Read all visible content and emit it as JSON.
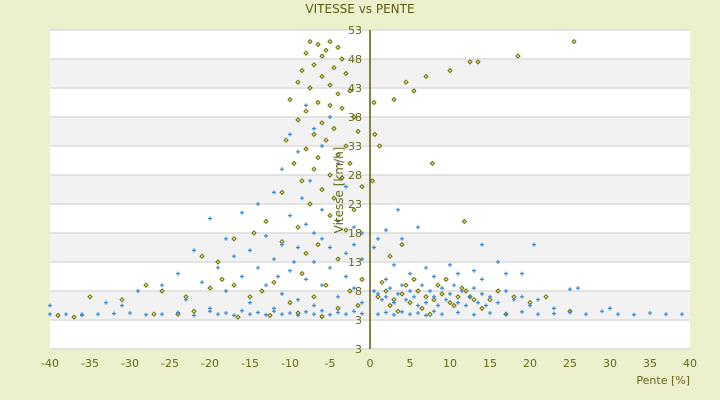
{
  "chart_data": {
    "type": "scatter",
    "title": "VITESSE vs PENTE",
    "xlabel": "Pente [%]",
    "ylabel": "Vitesse [km/h]",
    "xlim": [
      -40,
      40
    ],
    "ylim": [
      -2,
      53
    ],
    "x_ticks": [
      "-40",
      "-35",
      "-30",
      "-25",
      "-20",
      "-15",
      "-10",
      "-5",
      "0",
      "5",
      "10",
      "15",
      "20",
      "25",
      "30",
      "35",
      "40"
    ],
    "y_ticks": [
      "53",
      "48",
      "43",
      "38",
      "33",
      "28",
      "23",
      "18",
      "13",
      "8",
      "3",
      "3"
    ],
    "grid": true,
    "banded_background": true,
    "colors": {
      "background": "#ecf0cd",
      "band": "#f2f2f2",
      "grid": "#dcdcdc",
      "axis": "#5c5c00",
      "text": "#66661a",
      "series_blue": "#3a8ad8",
      "series_olive": "#6b6b00"
    },
    "series": [
      {
        "marker": "diamond",
        "color": "#6b6b00",
        "points": [
          [
            -7.5,
            51
          ],
          [
            -6.5,
            50.5
          ],
          [
            -5,
            51
          ],
          [
            -4,
            50
          ],
          [
            -8,
            49
          ],
          [
            -6,
            48.5
          ],
          [
            -5.5,
            49.5
          ],
          [
            -3.5,
            48
          ],
          [
            -7,
            47
          ],
          [
            -4.5,
            46.5
          ],
          [
            -8.5,
            46
          ],
          [
            -6,
            45
          ],
          [
            -3,
            45.5
          ],
          [
            -9,
            44
          ],
          [
            -5,
            43.5
          ],
          [
            -7.5,
            43
          ],
          [
            -4,
            42
          ],
          [
            -2.5,
            42.5
          ],
          [
            -10,
            41
          ],
          [
            -6.5,
            40.5
          ],
          [
            -5,
            40
          ],
          [
            -8,
            39
          ],
          [
            -3.5,
            39.5
          ],
          [
            -2,
            38
          ],
          [
            -9,
            37.5
          ],
          [
            -6,
            37
          ],
          [
            -4.5,
            36
          ],
          [
            -7,
            35
          ],
          [
            -1.5,
            35.5
          ],
          [
            -10.5,
            34
          ],
          [
            -5.5,
            34
          ],
          [
            -3,
            33
          ],
          [
            -8,
            32.5
          ],
          [
            -6.5,
            31
          ],
          [
            -4,
            31.5
          ],
          [
            -9.5,
            30
          ],
          [
            -2.5,
            30
          ],
          [
            -7,
            29
          ],
          [
            -5,
            28
          ],
          [
            -3.5,
            27.5
          ],
          [
            -8.5,
            27
          ],
          [
            -1,
            26
          ],
          [
            -6,
            25.5
          ],
          [
            -4.5,
            24
          ],
          [
            -11,
            25
          ],
          [
            -7.5,
            23
          ],
          [
            -2,
            22
          ],
          [
            -13,
            20
          ],
          [
            -5,
            21
          ],
          [
            -9,
            19
          ],
          [
            -14.5,
            18
          ],
          [
            -3,
            18.5
          ],
          [
            -17,
            17
          ],
          [
            -11,
            16.5
          ],
          [
            -6.5,
            16
          ],
          [
            -21,
            14
          ],
          [
            -8,
            14.5
          ],
          [
            -4,
            13.5
          ],
          [
            -19,
            13
          ],
          [
            -35,
            7
          ],
          [
            -31,
            6.5
          ],
          [
            -28,
            9
          ],
          [
            -26,
            8
          ],
          [
            -23,
            7
          ],
          [
            -22,
            4.5
          ],
          [
            -20,
            8.5
          ],
          [
            -18.5,
            10
          ],
          [
            -17,
            9
          ],
          [
            -15,
            7
          ],
          [
            -13.5,
            8
          ],
          [
            -12,
            9.5
          ],
          [
            -10,
            6
          ],
          [
            -8.5,
            11
          ],
          [
            -7,
            7
          ],
          [
            -5.5,
            9
          ],
          [
            -4,
            5
          ],
          [
            -2.5,
            8
          ],
          [
            -1,
            10
          ],
          [
            -27,
            4
          ],
          [
            -24,
            4
          ],
          [
            -16.5,
            3.5
          ],
          [
            -12.5,
            3.8
          ],
          [
            -9,
            4.2
          ],
          [
            -6,
            3.6
          ],
          [
            -37,
            3.5
          ],
          [
            -39,
            3.8
          ],
          [
            -1.5,
            5.5
          ],
          [
            0.5,
            40.5
          ],
          [
            1.2,
            33
          ],
          [
            0.6,
            35
          ],
          [
            4.5,
            44
          ],
          [
            7,
            45
          ],
          [
            10,
            46
          ],
          [
            12.5,
            47.5
          ],
          [
            13.5,
            47.5
          ],
          [
            18.5,
            48.5
          ],
          [
            25.5,
            51
          ],
          [
            3,
            41
          ],
          [
            5.5,
            42.5
          ],
          [
            7.8,
            30
          ],
          [
            11.8,
            20
          ],
          [
            4,
            16
          ],
          [
            0.3,
            27
          ],
          [
            2.5,
            14
          ],
          [
            22,
            7
          ],
          [
            25,
            4.5
          ],
          [
            20,
            6
          ],
          [
            17,
            4
          ],
          [
            14,
            5
          ],
          [
            1,
            7
          ],
          [
            2,
            8
          ],
          [
            3,
            6.5
          ],
          [
            4,
            7.5
          ],
          [
            5,
            6
          ],
          [
            6,
            8
          ],
          [
            7,
            7
          ],
          [
            8,
            6.5
          ],
          [
            9,
            7.5
          ],
          [
            10,
            6
          ],
          [
            11,
            7
          ],
          [
            12,
            8
          ],
          [
            13,
            6.5
          ],
          [
            2.5,
            5.5
          ],
          [
            4.5,
            9
          ],
          [
            6.5,
            5
          ],
          [
            8.5,
            9
          ],
          [
            10.5,
            5.5
          ],
          [
            12.5,
            7
          ],
          [
            15,
            6.5
          ],
          [
            16,
            8
          ],
          [
            18,
            7
          ],
          [
            1.5,
            9.5
          ],
          [
            3.5,
            4.5
          ],
          [
            5.5,
            10
          ],
          [
            7.5,
            4
          ],
          [
            9.5,
            10
          ],
          [
            11.5,
            8.5
          ]
        ]
      },
      {
        "marker": "plus",
        "color": "#3a8ad8",
        "points": [
          [
            -8,
            40
          ],
          [
            -7,
            36
          ],
          [
            -10,
            35
          ],
          [
            -6,
            33
          ],
          [
            -9,
            32
          ],
          [
            -5,
            38
          ],
          [
            -4,
            30
          ],
          [
            -11,
            29
          ],
          [
            -7.5,
            27
          ],
          [
            -3,
            26
          ],
          [
            -12,
            25
          ],
          [
            -8.5,
            24
          ],
          [
            -6,
            22
          ],
          [
            -14,
            23
          ],
          [
            -16,
            21.5
          ],
          [
            -20,
            20.5
          ],
          [
            -10,
            21
          ],
          [
            -4,
            20
          ],
          [
            -2,
            19
          ],
          [
            -7,
            18
          ],
          [
            -13,
            17.5
          ],
          [
            -18,
            17
          ],
          [
            -11,
            16
          ],
          [
            -5,
            15.5
          ],
          [
            -15,
            15
          ],
          [
            -9,
            15.5
          ],
          [
            -3,
            14.5
          ],
          [
            -22,
            15
          ],
          [
            -17,
            14
          ],
          [
            -12,
            13.5
          ],
          [
            -7,
            13
          ],
          [
            -1,
            13.5
          ],
          [
            -19,
            12
          ],
          [
            -14,
            12
          ],
          [
            -10,
            11.5
          ],
          [
            -5,
            12
          ],
          [
            -24,
            11
          ],
          [
            -16,
            10.5
          ],
          [
            -8,
            10
          ],
          [
            -3,
            10.5
          ],
          [
            -26,
            9
          ],
          [
            -21,
            9.5
          ],
          [
            -13,
            9
          ],
          [
            -6,
            9
          ],
          [
            -2,
            8.5
          ],
          [
            -29,
            8
          ],
          [
            -18,
            8
          ],
          [
            -11,
            7.5
          ],
          [
            -4,
            7
          ],
          [
            -33,
            6
          ],
          [
            -23,
            6.5
          ],
          [
            -15,
            6
          ],
          [
            -9,
            6.5
          ],
          [
            -1,
            6
          ],
          [
            -31,
            5.5
          ],
          [
            -20,
            5
          ],
          [
            -12,
            5
          ],
          [
            -7,
            5.5
          ],
          [
            -36,
            4
          ],
          [
            -40,
            5.5
          ],
          [
            -40,
            4
          ],
          [
            -38,
            4
          ],
          [
            -36,
            3.8
          ],
          [
            -34,
            4
          ],
          [
            -32,
            4.1
          ],
          [
            -30,
            4.2
          ],
          [
            -28,
            3.9
          ],
          [
            -26,
            4
          ],
          [
            -24,
            4.3
          ],
          [
            -22,
            3.8
          ],
          [
            -20,
            4.5
          ],
          [
            -19,
            4
          ],
          [
            -18,
            4.2
          ],
          [
            -17,
            3.8
          ],
          [
            -16,
            4.6
          ],
          [
            -15,
            4
          ],
          [
            -14,
            4.3
          ],
          [
            -13,
            3.9
          ],
          [
            -12,
            4.5
          ],
          [
            -11,
            4
          ],
          [
            -10,
            4.2
          ],
          [
            -9,
            3.8
          ],
          [
            -8,
            4.4
          ],
          [
            -7,
            4
          ],
          [
            -6,
            4.6
          ],
          [
            -5,
            3.9
          ],
          [
            -4,
            4.3
          ],
          [
            -3,
            4
          ],
          [
            -2,
            4.5
          ],
          [
            -1,
            4.1
          ],
          [
            1,
            4
          ],
          [
            2,
            4.3
          ],
          [
            3,
            3.9
          ],
          [
            4,
            4.4
          ],
          [
            5,
            4
          ],
          [
            6,
            4.2
          ],
          [
            7,
            3.8
          ],
          [
            8,
            4.5
          ],
          [
            9,
            4
          ],
          [
            11,
            4.3
          ],
          [
            13,
            3.9
          ],
          [
            15,
            4.2
          ],
          [
            17,
            4
          ],
          [
            19,
            4.4
          ],
          [
            21,
            4
          ],
          [
            23,
            4.1
          ],
          [
            25,
            4.3
          ],
          [
            27,
            4
          ],
          [
            29,
            4.5
          ],
          [
            31,
            4
          ],
          [
            33,
            3.9
          ],
          [
            35,
            4.2
          ],
          [
            37,
            4
          ],
          [
            39,
            4
          ],
          [
            3.5,
            22
          ],
          [
            4,
            17
          ],
          [
            2,
            18.5
          ],
          [
            6,
            19
          ],
          [
            14,
            16
          ],
          [
            20.5,
            16
          ],
          [
            1,
            17
          ],
          [
            0.5,
            15.5
          ],
          [
            26,
            8.5
          ],
          [
            25,
            8.3
          ],
          [
            23,
            5
          ],
          [
            30,
            5
          ],
          [
            0.5,
            8
          ],
          [
            1,
            7.5
          ],
          [
            1.5,
            6.5
          ],
          [
            2,
            7
          ],
          [
            2.5,
            8.5
          ],
          [
            3,
            6
          ],
          [
            3.5,
            7.5
          ],
          [
            4,
            9
          ],
          [
            4.5,
            6.5
          ],
          [
            5,
            8
          ],
          [
            5.5,
            7
          ],
          [
            6,
            5.5
          ],
          [
            6.5,
            9
          ],
          [
            7,
            6
          ],
          [
            7.5,
            8
          ],
          [
            8,
            7
          ],
          [
            8.5,
            5.5
          ],
          [
            9,
            8.5
          ],
          [
            9.5,
            6.5
          ],
          [
            10,
            7.5
          ],
          [
            10.5,
            9
          ],
          [
            11,
            6
          ],
          [
            11.5,
            8
          ],
          [
            12,
            5.5
          ],
          [
            12.5,
            7
          ],
          [
            13,
            8.5
          ],
          [
            13.5,
            6
          ],
          [
            14,
            7.5
          ],
          [
            14.5,
            5.5
          ],
          [
            15,
            7
          ],
          [
            16,
            6
          ],
          [
            17,
            8
          ],
          [
            18,
            6.5
          ],
          [
            19,
            7
          ],
          [
            20,
            5.5
          ],
          [
            21,
            6.5
          ],
          [
            2,
            10
          ],
          [
            5,
            11
          ],
          [
            8,
            10.5
          ],
          [
            11,
            11
          ],
          [
            14,
            10
          ],
          [
            17,
            11
          ],
          [
            3,
            12.5
          ],
          [
            7,
            12
          ],
          [
            10,
            12.5
          ],
          [
            13,
            11.5
          ],
          [
            16,
            13
          ],
          [
            19,
            11
          ],
          [
            -2,
            16
          ],
          [
            -1,
            18
          ],
          [
            -6,
            17
          ],
          [
            -8,
            19.5
          ],
          [
            -9.5,
            13
          ],
          [
            -11.5,
            10.5
          ]
        ]
      }
    ]
  }
}
